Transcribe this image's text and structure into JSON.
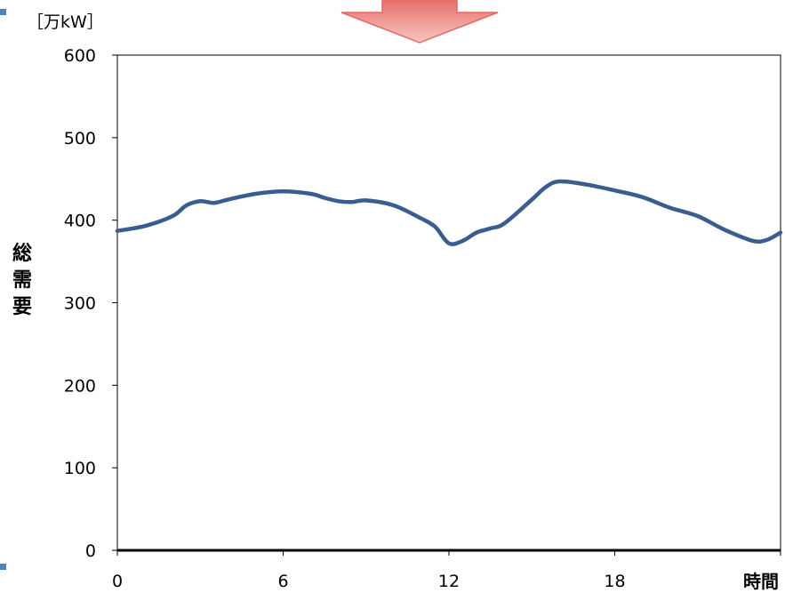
{
  "chart_data": {
    "type": "line",
    "unit": "［万kW］",
    "ylabel": "総需要",
    "xlabel": "時間",
    "xlim": [
      0,
      24
    ],
    "ylim": [
      0,
      600
    ],
    "x_ticks": [
      0,
      6,
      12,
      18
    ],
    "y_ticks": [
      0,
      100,
      200,
      300,
      400,
      500,
      600
    ],
    "grid": false,
    "series_color": "#3a5d8f",
    "series": [
      {
        "x": [
          0,
          1,
          2,
          2.5,
          3,
          3.5,
          4,
          5,
          6,
          7,
          7.5,
          8,
          8.5,
          9,
          10,
          11,
          11.5,
          12,
          12.5,
          13,
          13.5,
          14,
          15,
          15.5,
          16,
          17,
          18,
          19,
          20,
          21,
          22,
          23,
          23.5,
          24
        ],
        "values": [
          387,
          393,
          405,
          418,
          423,
          421,
          425,
          432,
          435,
          432,
          427,
          423,
          422,
          424,
          418,
          402,
          392,
          372,
          375,
          385,
          390,
          396,
          425,
          440,
          447,
          443,
          436,
          428,
          415,
          405,
          388,
          375,
          376,
          385
        ]
      }
    ]
  }
}
